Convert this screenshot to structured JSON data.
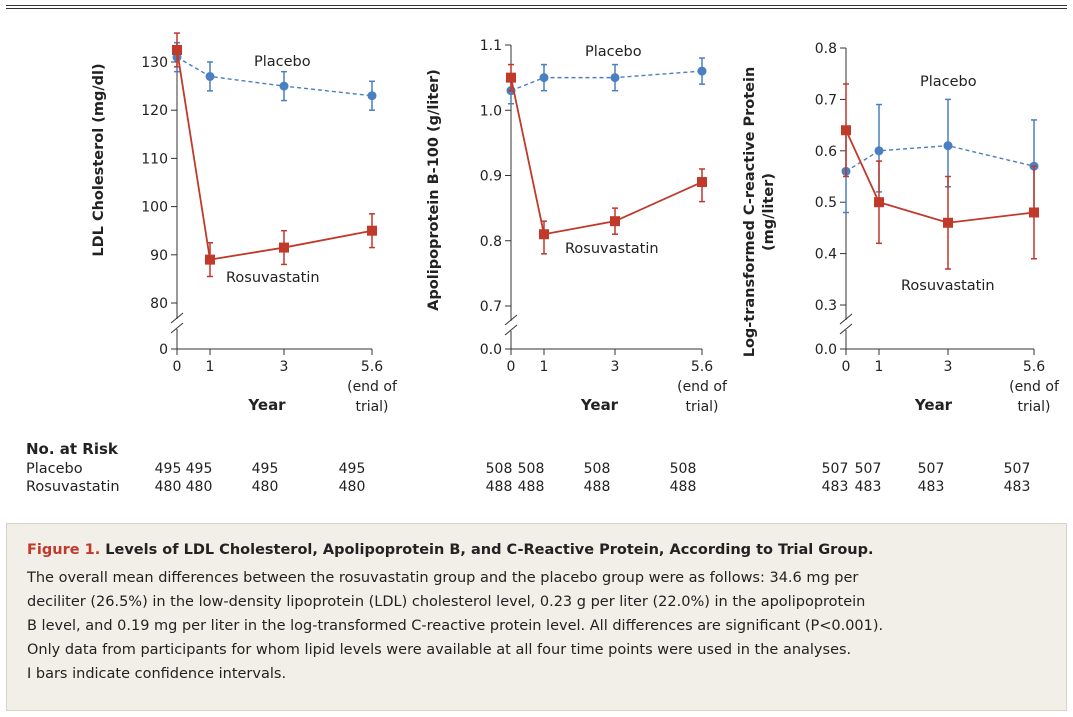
{
  "figure_label": "Figure 1.",
  "figure_title": "Levels of LDL Cholesterol, Apolipoprotein B, and C-Reactive Protein, According to Trial Group.",
  "caption_lines": [
    "The overall mean differences between the rosuvastatin group and the placebo group were as follows: 34.6 mg per",
    "deciliter (26.5%) in the low-density lipoprotein (LDL) cholesterol level, 0.23 g per liter (22.0%) in the apolipoprotein",
    "B level, and 0.19 mg per liter in the log-transformed C-reactive protein level. All differences are significant (P<0.001).",
    "Only data from participants for whom lipid levels were available at all four time points were used in the analyses.",
    "I bars indicate confidence intervals."
  ],
  "xlabel": "Year",
  "x_tick_labels": [
    "0",
    "1",
    "3",
    "5.6"
  ],
  "end_of_trial_note": [
    "(end of",
    "trial)"
  ],
  "risk": {
    "heading": "No. at Risk",
    "row_labels": [
      "Placebo",
      "Rosuvastatin"
    ]
  },
  "colors": {
    "placebo": "#4a7fc1",
    "rosuvastatin": "#c0392b",
    "caption_label": "#c0392b"
  },
  "chart_data": [
    {
      "type": "line",
      "ylabel": "LDL Cholesterol (mg/dl)",
      "x": [
        0,
        1,
        3,
        5.6
      ],
      "ylim": [
        80,
        130
      ],
      "axis_break": true,
      "y_ticks": [
        0,
        80,
        90,
        100,
        110,
        120,
        130
      ],
      "series": [
        {
          "name": "Placebo",
          "style": "dashed",
          "marker": "circle",
          "values": [
            131,
            127,
            125,
            123
          ],
          "ci_low": [
            128,
            124,
            122,
            120
          ],
          "ci_high": [
            134,
            130,
            128,
            126
          ]
        },
        {
          "name": "Rosuvastatin",
          "style": "solid",
          "marker": "square",
          "values": [
            132.5,
            89,
            91.5,
            95
          ],
          "ci_low": [
            129,
            85.5,
            88,
            91.5
          ],
          "ci_high": [
            136,
            92.5,
            95,
            98.5
          ]
        }
      ],
      "at_risk": {
        "Placebo": [
          "495",
          "495",
          "495",
          "495"
        ],
        "Rosuvastatin": [
          "480",
          "480",
          "480",
          "480"
        ]
      }
    },
    {
      "type": "line",
      "ylabel": "Apolipoprotein B-100 (g/liter)",
      "x": [
        0,
        1,
        3,
        5.6
      ],
      "ylim": [
        0.7,
        1.1
      ],
      "axis_break": true,
      "y_ticks": [
        0.0,
        0.7,
        0.8,
        0.9,
        1.0,
        1.1
      ],
      "series": [
        {
          "name": "Placebo",
          "style": "dashed",
          "marker": "circle",
          "values": [
            1.03,
            1.05,
            1.05,
            1.06
          ],
          "ci_low": [
            1.01,
            1.03,
            1.03,
            1.04
          ],
          "ci_high": [
            1.05,
            1.07,
            1.07,
            1.08
          ]
        },
        {
          "name": "Rosuvastatin",
          "style": "solid",
          "marker": "square",
          "values": [
            1.05,
            0.81,
            0.83,
            0.89
          ],
          "ci_low": [
            1.03,
            0.78,
            0.81,
            0.86
          ],
          "ci_high": [
            1.07,
            0.83,
            0.85,
            0.91
          ]
        }
      ],
      "at_risk": {
        "Placebo": [
          "508",
          "508",
          "508",
          "508"
        ],
        "Rosuvastatin": [
          "488",
          "488",
          "488",
          "488"
        ]
      }
    },
    {
      "type": "line",
      "ylabel": "Log-transformed C-reactive Protein (mg/liter)",
      "x": [
        0,
        1,
        3,
        5.6
      ],
      "ylim": [
        0.3,
        0.8
      ],
      "axis_break": true,
      "y_ticks": [
        0.0,
        0.3,
        0.4,
        0.5,
        0.6,
        0.7,
        0.8
      ],
      "series": [
        {
          "name": "Placebo",
          "style": "dashed",
          "marker": "circle",
          "values": [
            0.56,
            0.6,
            0.61,
            0.57
          ],
          "ci_low": [
            0.48,
            0.52,
            0.53,
            0.48
          ],
          "ci_high": [
            0.64,
            0.69,
            0.7,
            0.66
          ]
        },
        {
          "name": "Rosuvastatin",
          "style": "solid",
          "marker": "square",
          "values": [
            0.64,
            0.5,
            0.46,
            0.48
          ],
          "ci_low": [
            0.55,
            0.42,
            0.37,
            0.39
          ],
          "ci_high": [
            0.73,
            0.58,
            0.55,
            0.57
          ]
        }
      ],
      "at_risk": {
        "Placebo": [
          "507",
          "507",
          "507",
          "507"
        ],
        "Rosuvastatin": [
          "483",
          "483",
          "483",
          "483"
        ]
      }
    }
  ]
}
